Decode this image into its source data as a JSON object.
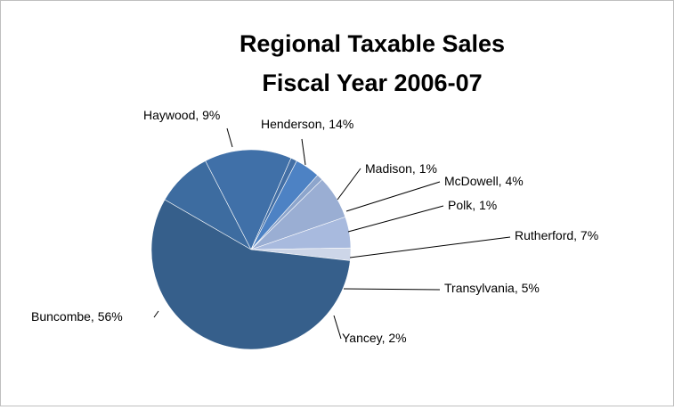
{
  "chart_data": {
    "type": "pie",
    "title": [
      "Regional Taxable Sales",
      "Fiscal Year 2006-07"
    ],
    "slices": [
      {
        "label": "Buncombe, 56%",
        "value": 56,
        "color": "#365f8b"
      },
      {
        "label": "Haywood, 9%",
        "value": 9,
        "color": "#3d6ca0"
      },
      {
        "label": "Henderson, 14%",
        "value": 14,
        "color": "#4070a8"
      },
      {
        "label": "Madison, 1%",
        "value": 1,
        "color": "#436fa5"
      },
      {
        "label": "McDowell, 4%",
        "value": 4,
        "color": "#4d82c4"
      },
      {
        "label": "Polk, 1%",
        "value": 1,
        "color": "#8da5cc"
      },
      {
        "label": "Rutherford, 7%",
        "value": 7,
        "color": "#9aaed3"
      },
      {
        "label": "Transylvania, 5%",
        "value": 5,
        "color": "#a8bade"
      },
      {
        "label": "Yancey, 2%",
        "value": 2,
        "color": "#cdd6e8"
      }
    ],
    "legend": "none"
  }
}
